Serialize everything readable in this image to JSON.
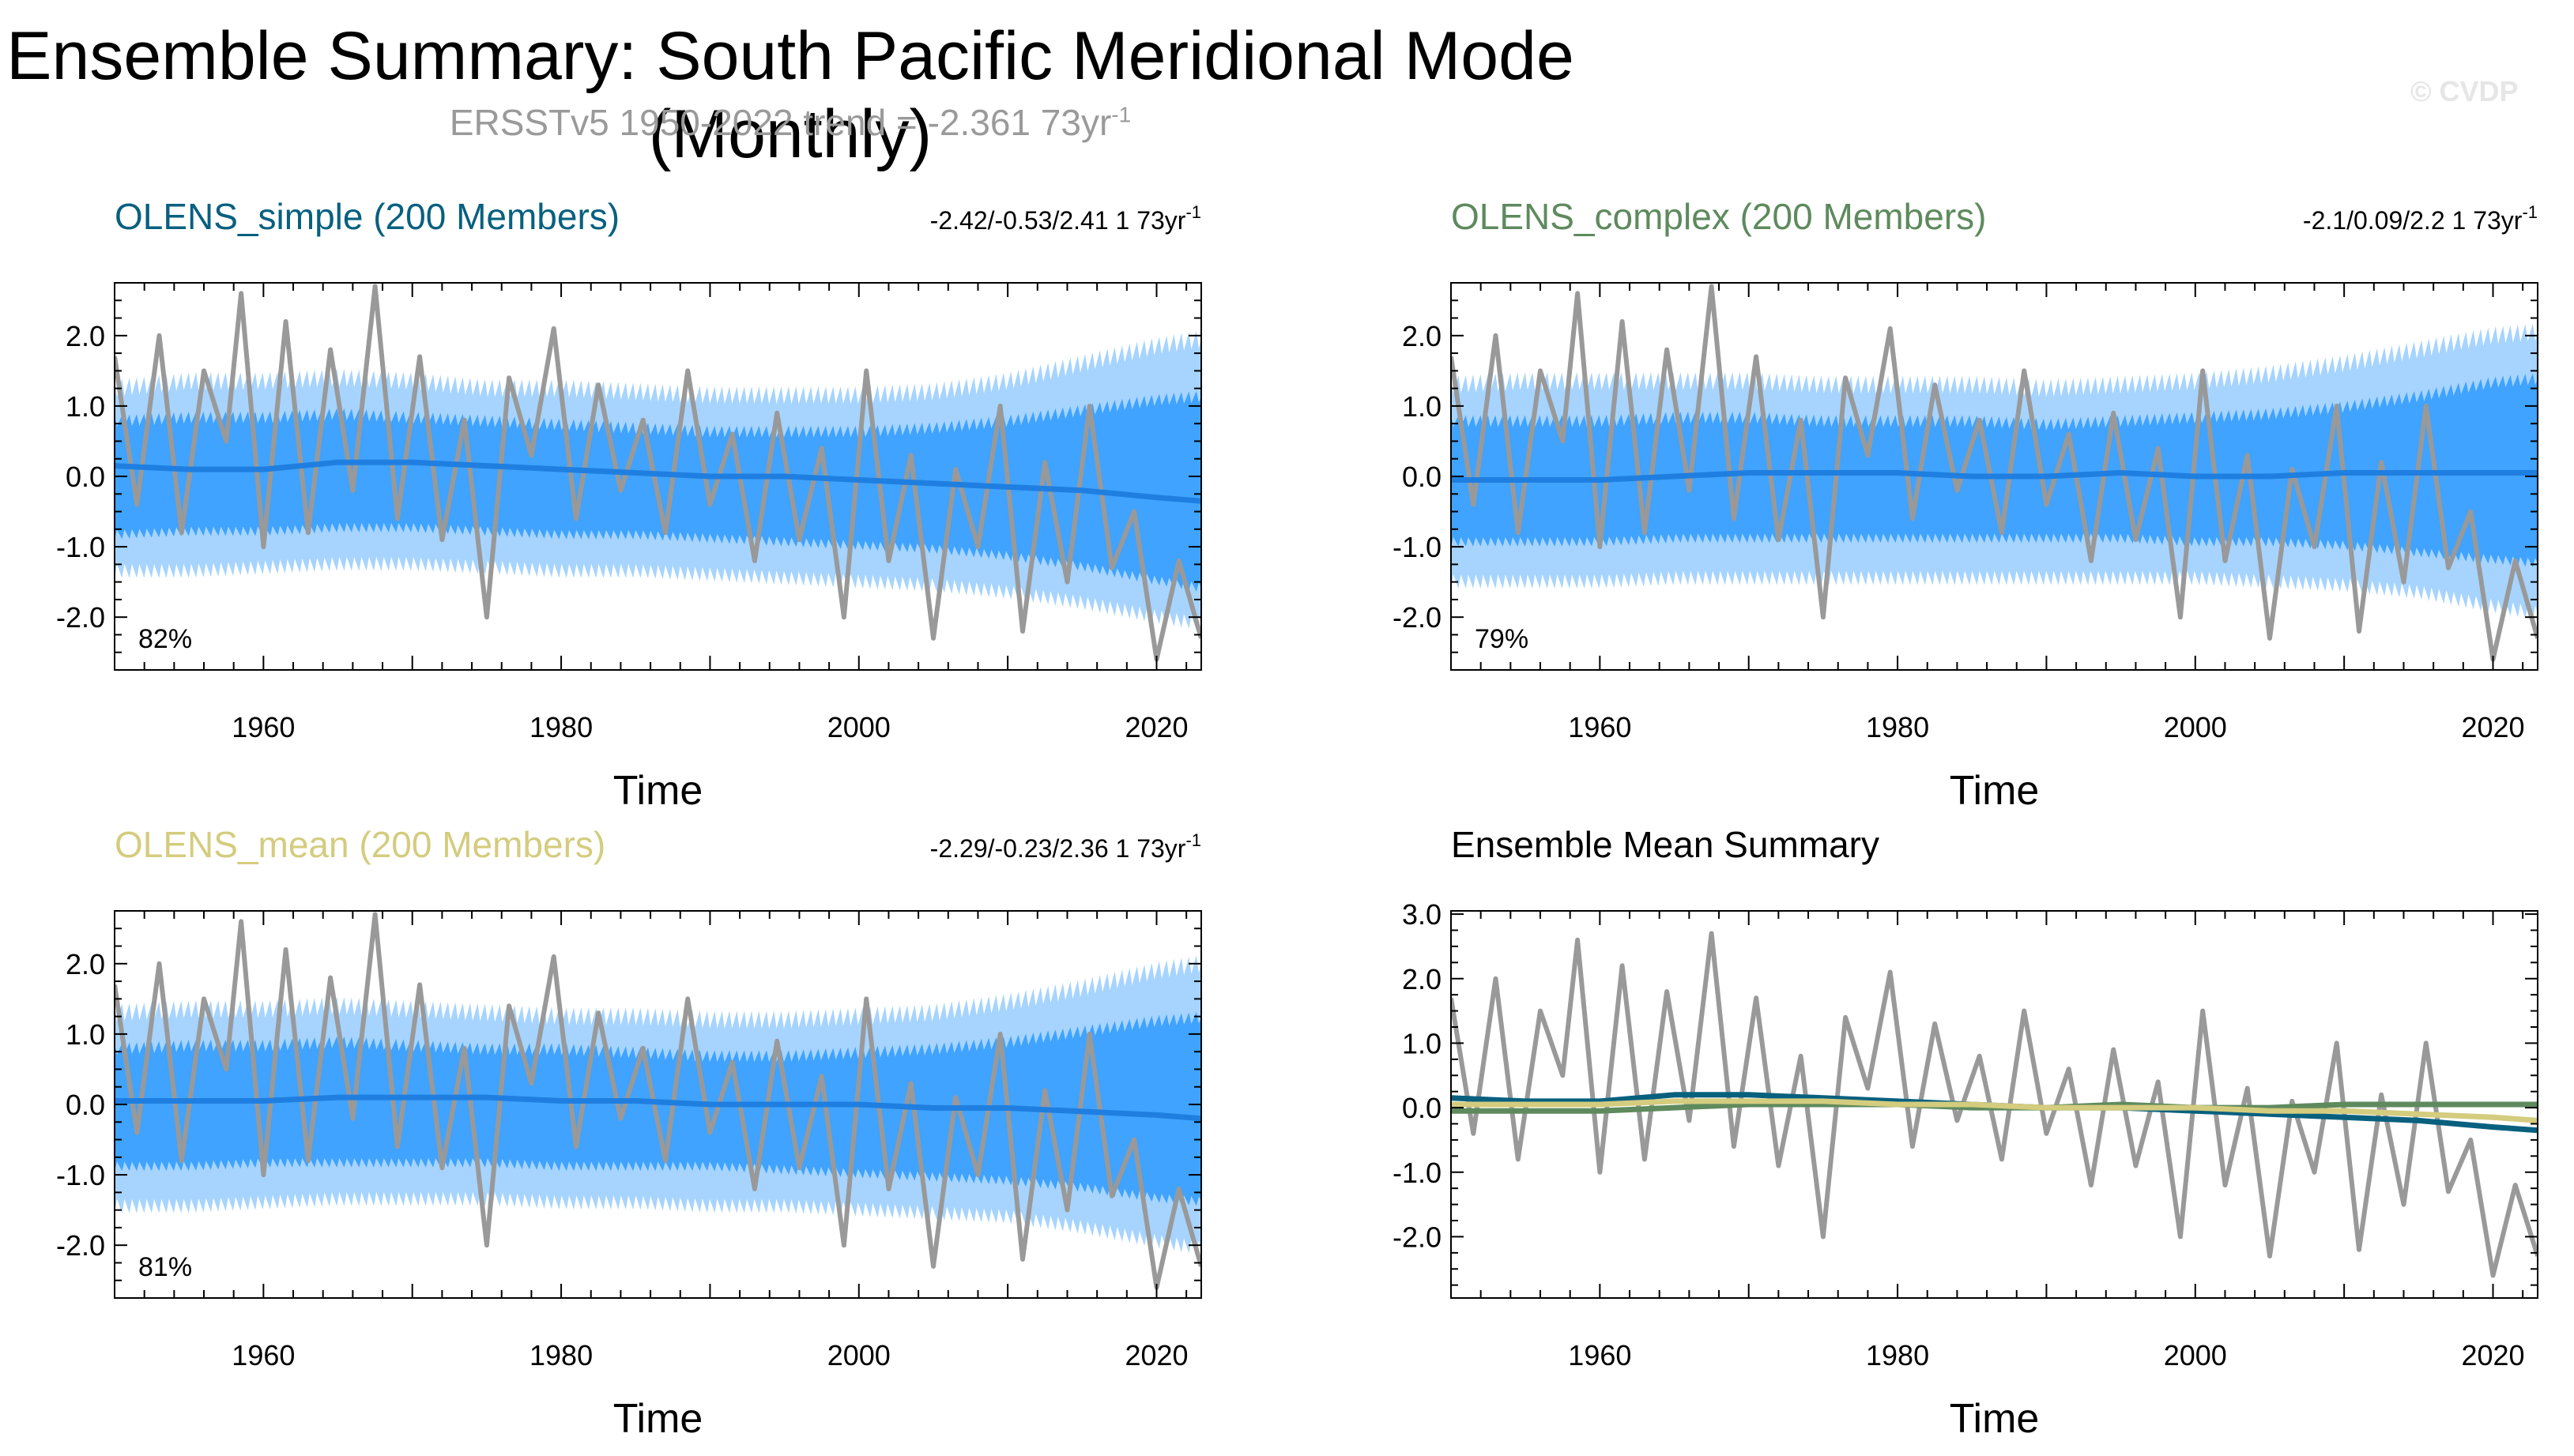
{
  "title": "Ensemble Summary: South Pacific Meridional Mode (Monthly)",
  "subtitle_prefix": "ERSSTv5 1950-2022 trend = -2.361 73yr",
  "subtitle_sup": "-1",
  "copyright": "© CVDP",
  "colors": {
    "obs": "#999999",
    "outer_band": "#a6d4ff",
    "inner_band": "#3fa3ff",
    "ens_mean_line": "#1f7fe0",
    "simple": "#08607f",
    "complex": "#5e8a5e",
    "mean": "#d4cc7e",
    "subtitle": "#9a9a9a"
  },
  "chart_data": [
    {
      "id": "olens-simple",
      "type": "line",
      "title": "OLENS_simple (200 Members)",
      "title_color": "#08607f",
      "trend_text": "-2.42/-0.53/2.41 1 73yr",
      "trend_sup": "-1",
      "percent_label": "82%",
      "xlabel": "Time",
      "xlim": [
        1950,
        2023
      ],
      "xticks": [
        1960,
        1980,
        2000,
        2020
      ],
      "xtick_labels": [
        "1960",
        "1980",
        "2000",
        "2020"
      ],
      "ylim": [
        -2.75,
        2.75
      ],
      "yticks": [
        -2.0,
        -1.0,
        0.0,
        1.0,
        2.0
      ],
      "ytick_labels": [
        "-2.0",
        "-1.0",
        "0.0",
        "1.0",
        "2.0"
      ],
      "series": [
        {
          "name": "ensemble mean",
          "role": "ens_mean",
          "x": [
            1950,
            1955,
            1960,
            1965,
            1970,
            1975,
            1980,
            1985,
            1990,
            1995,
            2000,
            2005,
            2010,
            2015,
            2020,
            2023
          ],
          "y": [
            0.15,
            0.1,
            0.1,
            0.2,
            0.2,
            0.15,
            0.1,
            0.05,
            0.0,
            0.0,
            -0.05,
            -0.1,
            -0.15,
            -0.2,
            -0.3,
            -0.35
          ]
        },
        {
          "name": "outer spread (max)",
          "role": "band_outer_upper",
          "values": [
            1.2,
            1.3,
            1.3,
            1.35,
            1.3,
            1.2,
            1.2,
            1.15,
            1.1,
            1.1,
            1.1,
            1.15,
            1.3,
            1.55,
            1.8,
            1.9
          ]
        },
        {
          "name": "outer spread (min)",
          "role": "band_outer_lower",
          "values": [
            -1.3,
            -1.3,
            -1.25,
            -1.2,
            -1.2,
            -1.25,
            -1.3,
            -1.3,
            -1.35,
            -1.4,
            -1.45,
            -1.5,
            -1.6,
            -1.75,
            -1.95,
            -2.05
          ]
        },
        {
          "name": "inner spread (max)",
          "role": "band_inner_upper",
          "values": [
            0.75,
            0.8,
            0.8,
            0.85,
            0.8,
            0.75,
            0.7,
            0.65,
            0.6,
            0.6,
            0.6,
            0.65,
            0.75,
            0.9,
            1.05,
            1.1
          ]
        },
        {
          "name": "inner spread (min)",
          "role": "band_inner_lower",
          "values": [
            -0.8,
            -0.75,
            -0.75,
            -0.7,
            -0.7,
            -0.75,
            -0.8,
            -0.8,
            -0.85,
            -0.9,
            -0.95,
            -1.0,
            -1.1,
            -1.25,
            -1.45,
            -1.55
          ]
        }
      ]
    },
    {
      "id": "olens-complex",
      "type": "line",
      "title": "OLENS_complex (200 Members)",
      "title_color": "#5e8a5e",
      "trend_text": "-2.1/0.09/2.2 1 73yr",
      "trend_sup": "-1",
      "percent_label": "79%",
      "xlabel": "Time",
      "xlim": [
        1950,
        2023
      ],
      "xticks": [
        1960,
        1980,
        2000,
        2020
      ],
      "xtick_labels": [
        "1960",
        "1980",
        "2000",
        "2020"
      ],
      "ylim": [
        -2.75,
        2.75
      ],
      "yticks": [
        -2.0,
        -1.0,
        0.0,
        1.0,
        2.0
      ],
      "ytick_labels": [
        "-2.0",
        "-1.0",
        "0.0",
        "1.0",
        "2.0"
      ],
      "series": [
        {
          "name": "ensemble mean",
          "role": "ens_mean",
          "x": [
            1950,
            1955,
            1960,
            1965,
            1970,
            1975,
            1980,
            1985,
            1990,
            1995,
            2000,
            2005,
            2010,
            2015,
            2020,
            2023
          ],
          "y": [
            -0.05,
            -0.05,
            -0.05,
            0.0,
            0.05,
            0.05,
            0.05,
            0.0,
            0.0,
            0.05,
            0.0,
            0.0,
            0.05,
            0.05,
            0.05,
            0.05
          ]
        },
        {
          "name": "outer spread (max)",
          "role": "band_outer_upper",
          "values": [
            1.25,
            1.3,
            1.3,
            1.3,
            1.3,
            1.25,
            1.25,
            1.25,
            1.2,
            1.25,
            1.3,
            1.4,
            1.55,
            1.75,
            1.95,
            2.0
          ]
        },
        {
          "name": "outer spread (min)",
          "role": "band_outer_lower",
          "values": [
            -1.45,
            -1.45,
            -1.45,
            -1.4,
            -1.4,
            -1.4,
            -1.4,
            -1.4,
            -1.4,
            -1.4,
            -1.4,
            -1.45,
            -1.5,
            -1.6,
            -1.8,
            -1.9
          ]
        },
        {
          "name": "inner spread (max)",
          "role": "band_inner_upper",
          "values": [
            0.75,
            0.75,
            0.75,
            0.8,
            0.8,
            0.75,
            0.75,
            0.75,
            0.7,
            0.75,
            0.8,
            0.85,
            0.95,
            1.1,
            1.3,
            1.35
          ]
        },
        {
          "name": "inner spread (min)",
          "role": "band_inner_lower",
          "values": [
            -0.9,
            -0.9,
            -0.9,
            -0.85,
            -0.85,
            -0.85,
            -0.85,
            -0.85,
            -0.85,
            -0.85,
            -0.9,
            -0.9,
            -0.95,
            -1.05,
            -1.15,
            -1.2
          ]
        }
      ]
    },
    {
      "id": "olens-mean",
      "type": "line",
      "title": "OLENS_mean (200 Members)",
      "title_color": "#d4cc7e",
      "trend_text": "-2.29/-0.23/2.36 1 73yr",
      "trend_sup": "-1",
      "percent_label": "81%",
      "xlabel": "Time",
      "xlim": [
        1950,
        2023
      ],
      "xticks": [
        1960,
        1980,
        2000,
        2020
      ],
      "xtick_labels": [
        "1960",
        "1980",
        "2000",
        "2020"
      ],
      "ylim": [
        -2.75,
        2.75
      ],
      "yticks": [
        -2.0,
        -1.0,
        0.0,
        1.0,
        2.0
      ],
      "ytick_labels": [
        "-2.0",
        "-1.0",
        "0.0",
        "1.0",
        "2.0"
      ],
      "series": [
        {
          "name": "ensemble mean",
          "role": "ens_mean",
          "x": [
            1950,
            1955,
            1960,
            1965,
            1970,
            1975,
            1980,
            1985,
            1990,
            1995,
            2000,
            2005,
            2010,
            2015,
            2020,
            2023
          ],
          "y": [
            0.05,
            0.05,
            0.05,
            0.1,
            0.1,
            0.1,
            0.05,
            0.05,
            0.0,
            0.0,
            0.0,
            -0.05,
            -0.05,
            -0.1,
            -0.15,
            -0.2
          ]
        },
        {
          "name": "outer spread (max)",
          "role": "band_outer_upper",
          "values": [
            1.25,
            1.3,
            1.3,
            1.35,
            1.3,
            1.25,
            1.2,
            1.2,
            1.15,
            1.15,
            1.2,
            1.25,
            1.4,
            1.6,
            1.85,
            1.95
          ]
        },
        {
          "name": "outer spread (min)",
          "role": "band_outer_lower",
          "values": [
            -1.4,
            -1.4,
            -1.35,
            -1.3,
            -1.3,
            -1.3,
            -1.35,
            -1.35,
            -1.4,
            -1.4,
            -1.45,
            -1.5,
            -1.55,
            -1.7,
            -1.9,
            -2.0
          ]
        },
        {
          "name": "inner spread (max)",
          "role": "band_inner_upper",
          "values": [
            0.75,
            0.8,
            0.8,
            0.85,
            0.8,
            0.75,
            0.75,
            0.7,
            0.65,
            0.65,
            0.7,
            0.75,
            0.85,
            1.0,
            1.15,
            1.2
          ]
        },
        {
          "name": "inner spread (min)",
          "role": "band_inner_lower",
          "values": [
            -0.85,
            -0.85,
            -0.8,
            -0.8,
            -0.8,
            -0.8,
            -0.85,
            -0.85,
            -0.85,
            -0.9,
            -0.95,
            -1.0,
            -1.05,
            -1.15,
            -1.3,
            -1.35
          ]
        }
      ]
    },
    {
      "id": "ensemble-mean-summary",
      "type": "line",
      "title": "Ensemble Mean Summary",
      "title_color": "#000000",
      "xlabel": "Time",
      "xlim": [
        1950,
        2023
      ],
      "xticks": [
        1960,
        1980,
        2000,
        2020
      ],
      "xtick_labels": [
        "1960",
        "1980",
        "2000",
        "2020"
      ],
      "ylim": [
        -2.95,
        3.05
      ],
      "yticks": [
        -2.0,
        -1.0,
        0.0,
        1.0,
        2.0,
        3.0
      ],
      "ytick_labels": [
        "-2.0",
        "-1.0",
        "0.0",
        "1.0",
        "2.0",
        "3.0"
      ],
      "series": [
        {
          "name": "OLENS_simple",
          "color_key": "simple",
          "x": [
            1950,
            1955,
            1960,
            1965,
            1970,
            1975,
            1980,
            1985,
            1990,
            1995,
            2000,
            2005,
            2010,
            2015,
            2020,
            2023
          ],
          "y": [
            0.15,
            0.1,
            0.1,
            0.2,
            0.2,
            0.15,
            0.1,
            0.05,
            0.0,
            0.0,
            -0.05,
            -0.1,
            -0.15,
            -0.2,
            -0.3,
            -0.35
          ]
        },
        {
          "name": "OLENS_complex",
          "color_key": "complex",
          "x": [
            1950,
            1955,
            1960,
            1965,
            1970,
            1975,
            1980,
            1985,
            1990,
            1995,
            2000,
            2005,
            2010,
            2015,
            2020,
            2023
          ],
          "y": [
            -0.05,
            -0.05,
            -0.05,
            0.0,
            0.05,
            0.05,
            0.05,
            0.0,
            0.0,
            0.05,
            0.0,
            0.0,
            0.05,
            0.05,
            0.05,
            0.05
          ]
        },
        {
          "name": "OLENS_mean",
          "color_key": "mean",
          "x": [
            1950,
            1955,
            1960,
            1965,
            1970,
            1975,
            1980,
            1985,
            1990,
            1995,
            2000,
            2005,
            2010,
            2015,
            2020,
            2023
          ],
          "y": [
            0.05,
            0.05,
            0.05,
            0.1,
            0.1,
            0.1,
            0.05,
            0.05,
            0.0,
            0.0,
            0.0,
            -0.05,
            -0.05,
            -0.1,
            -0.15,
            -0.2
          ]
        }
      ]
    }
  ],
  "observations": {
    "name": "ERSSTv5",
    "x": [
      1950,
      1951.5,
      1953,
      1954.5,
      1956,
      1957.5,
      1958.5,
      1960,
      1961.5,
      1963,
      1964.5,
      1966,
      1967.5,
      1969,
      1970.5,
      1972,
      1973.5,
      1975,
      1976.5,
      1978,
      1979.5,
      1981,
      1982.5,
      1984,
      1985.5,
      1987,
      1988.5,
      1990,
      1991.5,
      1993,
      1994.5,
      1996,
      1997.5,
      1999,
      2000.5,
      2002,
      2003.5,
      2005,
      2006.5,
      2008,
      2009.5,
      2011,
      2012.5,
      2014,
      2015.5,
      2017,
      2018.5,
      2020,
      2021.5,
      2023
    ],
    "y": [
      1.7,
      -0.4,
      2.0,
      -0.8,
      1.5,
      0.5,
      2.6,
      -1.0,
      2.2,
      -0.8,
      1.8,
      -0.2,
      2.7,
      -0.6,
      1.7,
      -0.9,
      0.8,
      -2.0,
      1.4,
      0.3,
      2.1,
      -0.6,
      1.3,
      -0.2,
      0.8,
      -0.8,
      1.5,
      -0.4,
      0.6,
      -1.2,
      0.9,
      -0.9,
      0.4,
      -2.0,
      1.5,
      -1.2,
      0.3,
      -2.3,
      0.1,
      -1.0,
      1.0,
      -2.2,
      0.2,
      -1.5,
      1.0,
      -1.3,
      -0.5,
      -2.6,
      -1.2,
      -2.3
    ]
  },
  "axis_label": "Time"
}
